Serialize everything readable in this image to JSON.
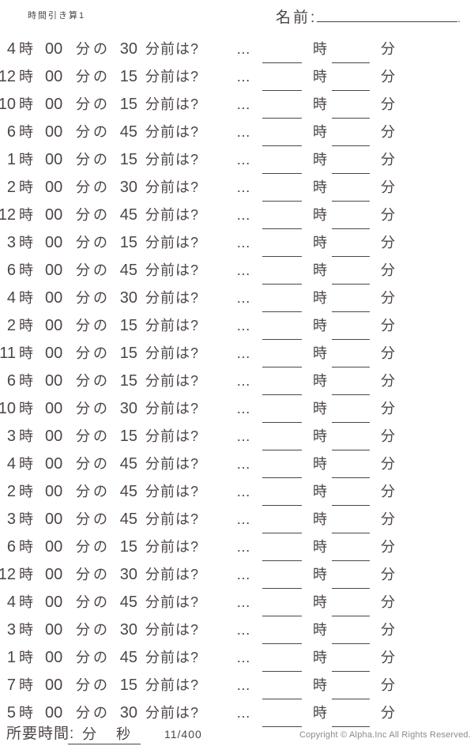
{
  "colors": {
    "text": "#4e4545",
    "muted": "#8f8888",
    "background": "#ffffff"
  },
  "header": {
    "title": "時間引き算1",
    "name_label": "名前:",
    "name_line_end": "."
  },
  "problems": {
    "labels": {
      "hour_unit": "時",
      "zero_minutes": "00",
      "minutes_of": "分の",
      "before_question": "分前は?",
      "ellipsis": "…",
      "answer_hour_unit": "時",
      "answer_minute_unit": "分"
    },
    "rows": [
      {
        "hour": "4",
        "minutes": "30"
      },
      {
        "hour": "12",
        "minutes": "15"
      },
      {
        "hour": "10",
        "minutes": "15"
      },
      {
        "hour": "6",
        "minutes": "45"
      },
      {
        "hour": "1",
        "minutes": "15"
      },
      {
        "hour": "2",
        "minutes": "30"
      },
      {
        "hour": "12",
        "minutes": "45"
      },
      {
        "hour": "3",
        "minutes": "15"
      },
      {
        "hour": "6",
        "minutes": "45"
      },
      {
        "hour": "4",
        "minutes": "30"
      },
      {
        "hour": "2",
        "minutes": "15"
      },
      {
        "hour": "11",
        "minutes": "15"
      },
      {
        "hour": "6",
        "minutes": "15"
      },
      {
        "hour": "10",
        "minutes": "30"
      },
      {
        "hour": "3",
        "minutes": "15"
      },
      {
        "hour": "4",
        "minutes": "45"
      },
      {
        "hour": "2",
        "minutes": "45"
      },
      {
        "hour": "3",
        "minutes": "45"
      },
      {
        "hour": "6",
        "minutes": "15"
      },
      {
        "hour": "12",
        "minutes": "30"
      },
      {
        "hour": "4",
        "minutes": "45"
      },
      {
        "hour": "3",
        "minutes": "30"
      },
      {
        "hour": "1",
        "minutes": "45"
      },
      {
        "hour": "7",
        "minutes": "15"
      },
      {
        "hour": "5",
        "minutes": "30"
      }
    ]
  },
  "footer": {
    "elapsed_label": "所要時間:",
    "minutes_unit": "分",
    "seconds_unit": "秒",
    "page_number": "11/400",
    "copyright": "Copyright © Alpha.Inc All Rights Reserved."
  }
}
